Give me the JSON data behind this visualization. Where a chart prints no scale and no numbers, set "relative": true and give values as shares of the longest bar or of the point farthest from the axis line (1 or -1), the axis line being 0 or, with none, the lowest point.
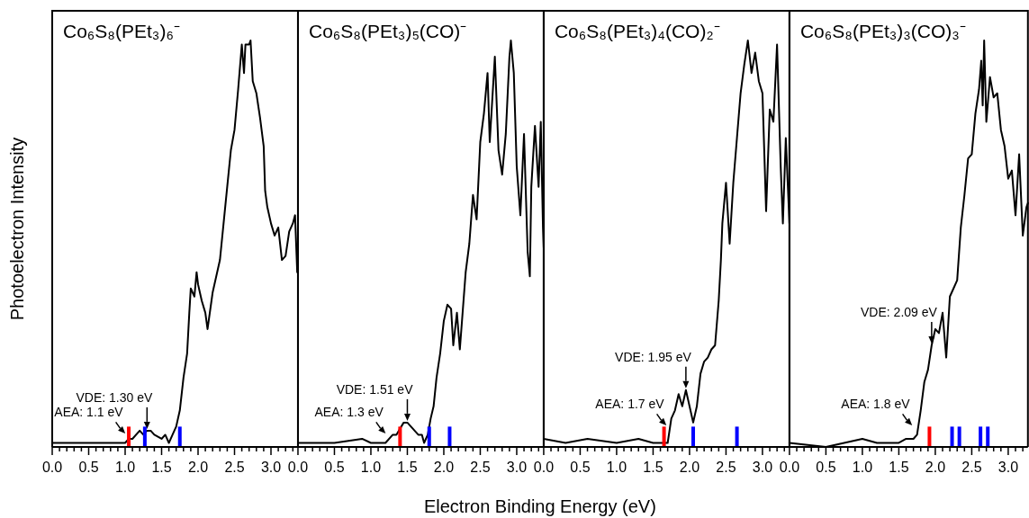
{
  "chart_data": [
    {
      "type": "line",
      "title": "Co₆S₈(PEt₃)₆⁻",
      "ylabel": "Photoelectron Intensity",
      "relative": true,
      "xlim": [
        0,
        3.37
      ],
      "xticks": [
        {
          "value": 0,
          "label": "0.0"
        },
        {
          "value": 0.1,
          "label": null
        },
        {
          "value": 0.2,
          "label": null
        },
        {
          "value": 0.3,
          "label": null
        },
        {
          "value": 0.4,
          "label": null
        },
        0.5,
        {
          "value": 0.6,
          "label": null
        },
        {
          "value": 0.7,
          "label": null
        },
        {
          "value": 0.8,
          "label": null
        },
        {
          "value": 0.9,
          "label": null
        },
        {
          "value": 1,
          "label": "1.0"
        },
        {
          "value": 1.1,
          "label": null
        },
        {
          "value": 1.2,
          "label": null
        },
        {
          "value": 1.3,
          "label": null
        },
        {
          "value": 1.4,
          "label": null
        },
        1.5,
        {
          "value": 1.6,
          "label": null
        },
        {
          "value": 1.7,
          "label": null
        },
        {
          "value": 1.8,
          "label": null
        },
        {
          "value": 1.9,
          "label": null
        },
        {
          "value": 2,
          "label": "2.0"
        },
        {
          "value": 2.1,
          "label": null
        },
        {
          "value": 2.2,
          "label": null
        },
        {
          "value": 2.3,
          "label": null
        },
        {
          "value": 2.4,
          "label": null
        },
        2.5,
        {
          "value": 2.6,
          "label": null
        },
        {
          "value": 2.7,
          "label": null
        },
        {
          "value": 2.8,
          "label": null
        },
        {
          "value": 2.9,
          "label": null
        },
        {
          "value": 3,
          "label": "3.0"
        },
        {
          "value": 3.1,
          "label": null
        },
        {
          "value": 3.2,
          "label": null
        },
        {
          "value": 3.3,
          "label": null
        }
      ],
      "series": [
        {
          "color": "#000000",
          "x": [
            0,
            0.5,
            0.9,
            1.0,
            1.05,
            1.1,
            1.2,
            1.25,
            1.3,
            1.35,
            1.4,
            1.5,
            1.55,
            1.6,
            1.65,
            1.7,
            1.75,
            1.8,
            1.85,
            1.88,
            1.9,
            1.95,
            1.98,
            2.0,
            2.05,
            2.1,
            2.13,
            2.2,
            2.3,
            2.4,
            2.45,
            2.5,
            2.55,
            2.6,
            2.63,
            2.65,
            2.7,
            2.72,
            2.75,
            2.8,
            2.85,
            2.9,
            2.92,
            2.95,
            3.0,
            3.05,
            3.1,
            3.15,
            3.2,
            3.25,
            3.3,
            3.33,
            3.36
          ],
          "values": [
            0.01,
            0.01,
            0.01,
            0.01,
            0.02,
            0.02,
            0.04,
            0.03,
            0.04,
            0.04,
            0.03,
            0.02,
            0.03,
            0.01,
            0.03,
            0.05,
            0.09,
            0.17,
            0.23,
            0.33,
            0.39,
            0.37,
            0.43,
            0.4,
            0.36,
            0.33,
            0.29,
            0.38,
            0.46,
            0.64,
            0.73,
            0.78,
            0.88,
            0.99,
            0.92,
            0.99,
            0.99,
            1.0,
            0.9,
            0.87,
            0.81,
            0.74,
            0.63,
            0.59,
            0.55,
            0.52,
            0.54,
            0.46,
            0.47,
            0.53,
            0.55,
            0.57,
            0.43
          ]
        },
        {
          "type": "bar",
          "color": "#ff0000",
          "x": [
            1.05
          ],
          "values": [
            0.05
          ]
        },
        {
          "type": "bar",
          "color": "#0000ff",
          "x": [
            1.27,
            1.75
          ],
          "values": [
            0.05,
            0.05
          ]
        }
      ],
      "annotations": [
        {
          "text": "AEA: 1.1 eV",
          "x": 1.02,
          "y": 0.03
        },
        {
          "text": "VDE: 1.30 eV",
          "x": 1.3,
          "y": 0.04
        }
      ]
    },
    {
      "type": "line",
      "title": "Co₆S₈(PEt₃)₅(CO)⁻",
      "xlabel": "Electron Binding Energy (eV)",
      "relative": true,
      "xlim": [
        0,
        3.37
      ],
      "xticks": [
        {
          "value": 0,
          "label": "0.0"
        },
        {
          "value": 0.1,
          "label": null
        },
        {
          "value": 0.2,
          "label": null
        },
        {
          "value": 0.3,
          "label": null
        },
        {
          "value": 0.4,
          "label": null
        },
        0.5,
        {
          "value": 0.6,
          "label": null
        },
        {
          "value": 0.7,
          "label": null
        },
        {
          "value": 0.8,
          "label": null
        },
        {
          "value": 0.9,
          "label": null
        },
        {
          "value": 1,
          "label": "1.0"
        },
        {
          "value": 1.1,
          "label": null
        },
        {
          "value": 1.2,
          "label": null
        },
        {
          "value": 1.3,
          "label": null
        },
        {
          "value": 1.4,
          "label": null
        },
        1.5,
        {
          "value": 1.6,
          "label": null
        },
        {
          "value": 1.7,
          "label": null
        },
        {
          "value": 1.8,
          "label": null
        },
        {
          "value": 1.9,
          "label": null
        },
        {
          "value": 2,
          "label": "2.0"
        },
        {
          "value": 2.1,
          "label": null
        },
        {
          "value": 2.2,
          "label": null
        },
        {
          "value": 2.3,
          "label": null
        },
        {
          "value": 2.4,
          "label": null
        },
        2.5,
        {
          "value": 2.6,
          "label": null
        },
        {
          "value": 2.7,
          "label": null
        },
        {
          "value": 2.8,
          "label": null
        },
        {
          "value": 2.9,
          "label": null
        },
        {
          "value": 3,
          "label": "3.0"
        },
        {
          "value": 3.1,
          "label": null
        },
        {
          "value": 3.2,
          "label": null
        },
        {
          "value": 3.3,
          "label": null
        }
      ],
      "series": [
        {
          "color": "#000000",
          "x": [
            0,
            0.5,
            0.88,
            1.0,
            1.2,
            1.3,
            1.35,
            1.45,
            1.5,
            1.55,
            1.6,
            1.65,
            1.7,
            1.73,
            1.78,
            1.82,
            1.86,
            1.9,
            1.95,
            2.0,
            2.05,
            2.1,
            2.13,
            2.18,
            2.22,
            2.3,
            2.35,
            2.4,
            2.45,
            2.5,
            2.55,
            2.6,
            2.63,
            2.7,
            2.75,
            2.8,
            2.85,
            2.9,
            2.92,
            2.96,
            3.0,
            3.05,
            3.1,
            3.15,
            3.18,
            3.2,
            3.25,
            3.3,
            3.33,
            3.36,
            3.37
          ],
          "values": [
            0.01,
            0.01,
            0.02,
            0.01,
            0.01,
            0.03,
            0.03,
            0.06,
            0.06,
            0.05,
            0.04,
            0.03,
            0.03,
            0.01,
            0.03,
            0.07,
            0.1,
            0.17,
            0.23,
            0.31,
            0.35,
            0.34,
            0.25,
            0.33,
            0.24,
            0.43,
            0.5,
            0.62,
            0.56,
            0.75,
            0.82,
            0.92,
            0.75,
            0.96,
            0.73,
            0.67,
            0.77,
            0.96,
            1.0,
            0.92,
            0.69,
            0.57,
            0.77,
            0.48,
            0.42,
            0.64,
            0.79,
            0.64,
            0.8,
            0.54,
            0.49
          ]
        },
        {
          "type": "bar",
          "color": "#ff0000",
          "x": [
            1.4
          ],
          "values": [
            0.05
          ]
        },
        {
          "type": "bar",
          "color": "#0000ff",
          "x": [
            1.8,
            2.08
          ],
          "values": [
            0.05,
            0.05
          ]
        }
      ],
      "annotations": [
        {
          "text": "AEA: 1.3 eV",
          "x": 1.22,
          "y": 0.03
        },
        {
          "text": "VDE: 1.51 eV",
          "x": 1.5,
          "y": 0.06
        }
      ]
    },
    {
      "type": "line",
      "title": "Co₆S₈(PEt₃)₄(CO)₂⁻",
      "relative": true,
      "xlim": [
        0,
        3.37
      ],
      "xticks": [
        {
          "value": 0,
          "label": "0.0"
        },
        {
          "value": 0.1,
          "label": null
        },
        {
          "value": 0.2,
          "label": null
        },
        {
          "value": 0.3,
          "label": null
        },
        {
          "value": 0.4,
          "label": null
        },
        0.5,
        {
          "value": 0.6,
          "label": null
        },
        {
          "value": 0.7,
          "label": null
        },
        {
          "value": 0.8,
          "label": null
        },
        {
          "value": 0.9,
          "label": null
        },
        {
          "value": 1,
          "label": "1.0"
        },
        {
          "value": 1.1,
          "label": null
        },
        {
          "value": 1.2,
          "label": null
        },
        {
          "value": 1.3,
          "label": null
        },
        {
          "value": 1.4,
          "label": null
        },
        1.5,
        {
          "value": 1.6,
          "label": null
        },
        {
          "value": 1.7,
          "label": null
        },
        {
          "value": 1.8,
          "label": null
        },
        {
          "value": 1.9,
          "label": null
        },
        {
          "value": 2,
          "label": "2.0"
        },
        {
          "value": 2.1,
          "label": null
        },
        {
          "value": 2.2,
          "label": null
        },
        {
          "value": 2.3,
          "label": null
        },
        {
          "value": 2.4,
          "label": null
        },
        2.5,
        {
          "value": 2.6,
          "label": null
        },
        {
          "value": 2.7,
          "label": null
        },
        {
          "value": 2.8,
          "label": null
        },
        {
          "value": 2.9,
          "label": null
        },
        {
          "value": 3,
          "label": "3.0"
        },
        {
          "value": 3.1,
          "label": null
        },
        {
          "value": 3.2,
          "label": null
        },
        {
          "value": 3.3,
          "label": null
        }
      ],
      "series": [
        {
          "color": "#000000",
          "x": [
            0,
            0.3,
            0.6,
            1.0,
            1.3,
            1.5,
            1.6,
            1.7,
            1.75,
            1.8,
            1.85,
            1.9,
            1.95,
            2.0,
            2.05,
            2.1,
            2.15,
            2.2,
            2.25,
            2.3,
            2.35,
            2.4,
            2.43,
            2.45,
            2.5,
            2.55,
            2.6,
            2.65,
            2.7,
            2.75,
            2.8,
            2.85,
            2.9,
            2.95,
            3.0,
            3.05,
            3.1,
            3.15,
            3.2,
            3.25,
            3.28,
            3.32,
            3.37
          ],
          "values": [
            0.02,
            0.01,
            0.02,
            0.01,
            0.02,
            0.01,
            0.01,
            0.01,
            0.07,
            0.09,
            0.13,
            0.1,
            0.14,
            0.1,
            0.06,
            0.1,
            0.18,
            0.21,
            0.22,
            0.24,
            0.25,
            0.36,
            0.46,
            0.55,
            0.65,
            0.5,
            0.65,
            0.76,
            0.87,
            0.94,
            1.0,
            0.92,
            0.97,
            0.9,
            0.87,
            0.58,
            0.83,
            0.8,
            0.99,
            0.69,
            0.55,
            0.76,
            0.55
          ]
        },
        {
          "type": "bar",
          "color": "#ff0000",
          "x": [
            1.65
          ],
          "values": [
            0.05
          ]
        },
        {
          "type": "bar",
          "color": "#0000ff",
          "x": [
            2.05,
            2.65
          ],
          "values": [
            0.05,
            0.05
          ]
        }
      ],
      "annotations": [
        {
          "text": "AEA: 1.7 eV",
          "x": 1.7,
          "y": 0.05
        },
        {
          "text": "VDE: 1.95 eV",
          "x": 1.95,
          "y": 0.14
        }
      ]
    },
    {
      "type": "line",
      "title": "Co₆S₈(PEt₃)₃(CO)₃⁻",
      "relative": true,
      "xlim": [
        0,
        3.27
      ],
      "xticks": [
        {
          "value": 0,
          "label": "0.0"
        },
        {
          "value": 0.1,
          "label": null
        },
        {
          "value": 0.2,
          "label": null
        },
        {
          "value": 0.3,
          "label": null
        },
        {
          "value": 0.4,
          "label": null
        },
        0.5,
        {
          "value": 0.6,
          "label": null
        },
        {
          "value": 0.7,
          "label": null
        },
        {
          "value": 0.8,
          "label": null
        },
        {
          "value": 0.9,
          "label": null
        },
        {
          "value": 1,
          "label": "1.0"
        },
        {
          "value": 1.1,
          "label": null
        },
        {
          "value": 1.2,
          "label": null
        },
        {
          "value": 1.3,
          "label": null
        },
        {
          "value": 1.4,
          "label": null
        },
        1.5,
        {
          "value": 1.6,
          "label": null
        },
        {
          "value": 1.7,
          "label": null
        },
        {
          "value": 1.8,
          "label": null
        },
        {
          "value": 1.9,
          "label": null
        },
        {
          "value": 2,
          "label": "2.0"
        },
        {
          "value": 2.1,
          "label": null
        },
        {
          "value": 2.2,
          "label": null
        },
        {
          "value": 2.3,
          "label": null
        },
        {
          "value": 2.4,
          "label": null
        },
        2.5,
        {
          "value": 2.6,
          "label": null
        },
        {
          "value": 2.7,
          "label": null
        },
        {
          "value": 2.8,
          "label": null
        },
        {
          "value": 2.9,
          "label": null
        },
        {
          "value": 3,
          "label": "3.0"
        },
        {
          "value": 3.1,
          "label": null
        },
        {
          "value": 3.2,
          "label": null
        }
      ],
      "series": [
        {
          "color": "#000000",
          "x": [
            0,
            0.5,
            1.0,
            1.2,
            1.5,
            1.6,
            1.7,
            1.75,
            1.8,
            1.85,
            1.9,
            1.95,
            2.0,
            2.05,
            2.1,
            2.15,
            2.2,
            2.25,
            2.3,
            2.35,
            2.4,
            2.45,
            2.5,
            2.55,
            2.6,
            2.63,
            2.65,
            2.67,
            2.7,
            2.75,
            2.8,
            2.85,
            2.9,
            2.95,
            3.0,
            3.05,
            3.1,
            3.15,
            3.2,
            3.25,
            3.27
          ],
          "values": [
            0.01,
            0.0,
            0.02,
            0.01,
            0.01,
            0.02,
            0.02,
            0.03,
            0.09,
            0.16,
            0.19,
            0.25,
            0.29,
            0.28,
            0.33,
            0.22,
            0.37,
            0.39,
            0.41,
            0.54,
            0.62,
            0.71,
            0.72,
            0.82,
            0.88,
            0.95,
            0.84,
            1.0,
            0.8,
            0.91,
            0.86,
            0.87,
            0.78,
            0.74,
            0.66,
            0.68,
            0.57,
            0.72,
            0.52,
            0.59,
            0.6
          ]
        },
        {
          "type": "bar",
          "color": "#ff0000",
          "x": [
            1.92
          ],
          "values": [
            0.05
          ]
        },
        {
          "type": "bar",
          "color": "#0000ff",
          "x": [
            2.23,
            2.33,
            2.62,
            2.72
          ],
          "values": [
            0.05,
            0.05,
            0.05,
            0.05
          ]
        }
      ],
      "annotations": [
        {
          "text": "AEA: 1.8 eV",
          "x": 1.7,
          "y": 0.05
        },
        {
          "text": "VDE: 2.09 eV",
          "x": 1.95,
          "y": 0.25
        }
      ]
    }
  ]
}
